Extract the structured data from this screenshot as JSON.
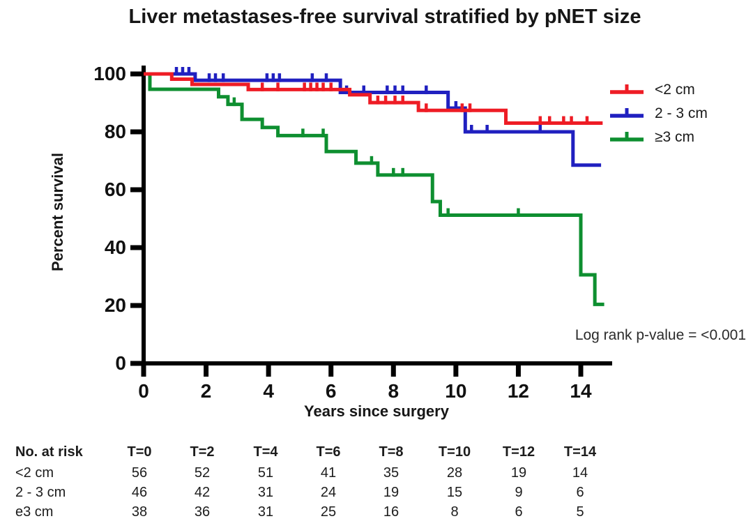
{
  "chart_data": {
    "type": "line",
    "subtype": "kaplan-meier-step",
    "title": "Liver metastases-free survival stratified by pNET size",
    "xlabel": "Years since surgery",
    "ylabel": "Percent survival",
    "annotation": "Log rank p-value = <0.001",
    "xlim": [
      0,
      15
    ],
    "ylim": [
      0,
      100
    ],
    "x_ticks": [
      0,
      2,
      4,
      6,
      8,
      10,
      12,
      14
    ],
    "y_ticks": [
      100,
      80,
      60,
      40,
      20,
      0
    ],
    "grid": false,
    "legend_position": "right",
    "axis_color": "#000000",
    "series": [
      {
        "name": "<2 cm",
        "color": "#EE1C25",
        "steps": [
          [
            0,
            100
          ],
          [
            0.9,
            98.2
          ],
          [
            1.55,
            96.4
          ],
          [
            3.35,
            94.6
          ],
          [
            6.6,
            92.8
          ],
          [
            7.25,
            90.1
          ],
          [
            8.8,
            87.4
          ],
          [
            11.6,
            83.0
          ]
        ],
        "end_x": 14.7,
        "censors": [
          [
            3.8,
            94.6
          ],
          [
            4.3,
            94.6
          ],
          [
            5.15,
            94.6
          ],
          [
            5.35,
            94.6
          ],
          [
            5.55,
            94.6
          ],
          [
            5.75,
            94.6
          ],
          [
            6.0,
            94.6
          ],
          [
            7.5,
            90.1
          ],
          [
            7.75,
            90.1
          ],
          [
            8.05,
            90.1
          ],
          [
            8.3,
            90.1
          ],
          [
            9.05,
            87.4
          ],
          [
            10.2,
            87.4
          ],
          [
            10.45,
            87.4
          ],
          [
            12.7,
            83.0
          ],
          [
            13.0,
            83.0
          ],
          [
            13.45,
            83.0
          ],
          [
            13.7,
            83.0
          ],
          [
            14.2,
            83.0
          ]
        ]
      },
      {
        "name": "2 - 3 cm",
        "color": "#2020C0",
        "steps": [
          [
            0,
            100
          ],
          [
            1.65,
            97.8
          ],
          [
            6.3,
            93.6
          ],
          [
            9.75,
            88.2
          ],
          [
            10.3,
            80.0
          ],
          [
            13.75,
            68.5
          ]
        ],
        "end_x": 14.65,
        "censors": [
          [
            1.05,
            100
          ],
          [
            1.25,
            100
          ],
          [
            1.45,
            100
          ],
          [
            2.1,
            97.8
          ],
          [
            2.3,
            97.8
          ],
          [
            2.55,
            97.8
          ],
          [
            3.95,
            97.8
          ],
          [
            4.15,
            97.8
          ],
          [
            4.35,
            97.8
          ],
          [
            5.4,
            97.8
          ],
          [
            5.85,
            97.8
          ],
          [
            6.5,
            93.6
          ],
          [
            7.05,
            93.6
          ],
          [
            7.8,
            93.6
          ],
          [
            8.05,
            93.6
          ],
          [
            8.3,
            93.6
          ],
          [
            9.05,
            93.6
          ],
          [
            10.0,
            88.2
          ],
          [
            10.5,
            80.0
          ],
          [
            11.0,
            80.0
          ],
          [
            12.7,
            80.0
          ]
        ]
      },
      {
        "name": "≥3 cm",
        "color": "#0E8F30",
        "steps": [
          [
            0,
            100
          ],
          [
            0.2,
            94.7
          ],
          [
            2.4,
            92.1
          ],
          [
            2.7,
            89.5
          ],
          [
            3.15,
            84.3
          ],
          [
            3.8,
            81.5
          ],
          [
            4.3,
            78.7
          ],
          [
            5.85,
            73.2
          ],
          [
            6.8,
            69.2
          ],
          [
            7.5,
            65.1
          ],
          [
            9.25,
            55.9
          ],
          [
            9.5,
            51.2
          ],
          [
            14.0,
            30.6
          ],
          [
            14.45,
            20.4
          ]
        ],
        "end_x": 14.75,
        "censors": [
          [
            2.9,
            89.5
          ],
          [
            5.1,
            78.7
          ],
          [
            5.75,
            78.7
          ],
          [
            7.3,
            69.2
          ],
          [
            8.0,
            65.1
          ],
          [
            8.3,
            65.1
          ],
          [
            9.75,
            51.2
          ],
          [
            12.0,
            51.2
          ]
        ]
      }
    ]
  },
  "risk_table": {
    "header": [
      "No. at risk",
      "T=0",
      "T=2",
      "T=4",
      "T=6",
      "T=8",
      "T=10",
      "T=12",
      "T=14"
    ],
    "rows": [
      {
        "label": "<2 cm",
        "values": [
          "56",
          "52",
          "51",
          "41",
          "35",
          "28",
          "19",
          "14"
        ]
      },
      {
        "label": "2 - 3 cm",
        "values": [
          "46",
          "42",
          "31",
          "24",
          "19",
          "15",
          "9",
          "6"
        ]
      },
      {
        "label": "e3 cm",
        "values": [
          "38",
          "36",
          "31",
          "25",
          "16",
          "8",
          "6",
          "5"
        ]
      }
    ]
  }
}
